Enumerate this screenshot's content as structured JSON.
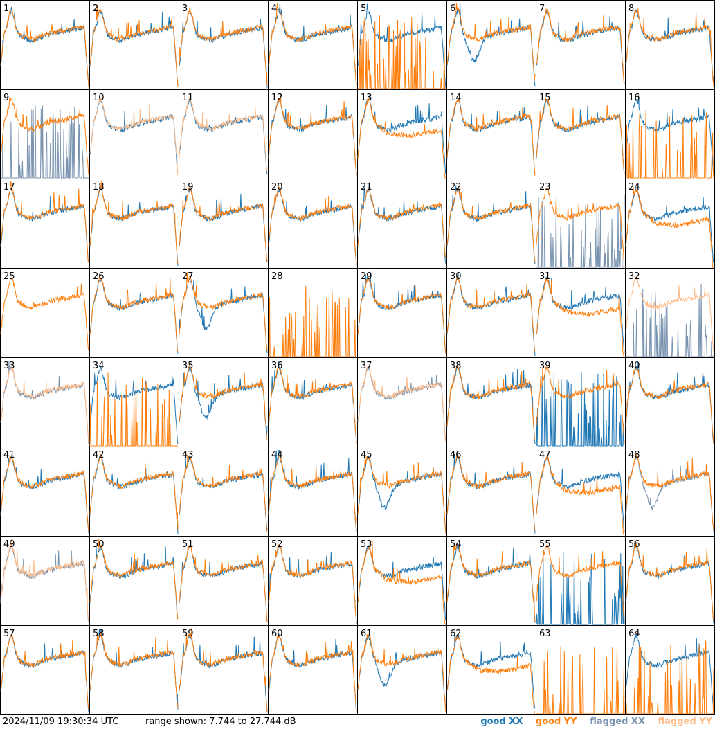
{
  "footer": {
    "timestamp": "2024/11/09 19:30:34 UTC",
    "range_text": "range shown: 7.744 to 27.744 dB"
  },
  "legend": [
    {
      "label": "good XX",
      "color": "#1f77b4"
    },
    {
      "label": "good YY",
      "color": "#ff7f0e"
    },
    {
      "label": "flagged XX",
      "color": "#7a94b0"
    },
    {
      "label": "flagged YY",
      "color": "#ffbb88"
    }
  ],
  "chart_data": {
    "type": "line",
    "layout": "small-multiples 8x8",
    "panels": [
      "1",
      "2",
      "3",
      "4",
      "5",
      "6",
      "7",
      "8",
      "9",
      "10",
      "11",
      "12",
      "13",
      "14",
      "15",
      "16",
      "17",
      "18",
      "19",
      "20",
      "21",
      "22",
      "23",
      "24",
      "25",
      "26",
      "27",
      "28",
      "29",
      "30",
      "31",
      "32",
      "33",
      "34",
      "35",
      "36",
      "37",
      "38",
      "39",
      "40",
      "41",
      "42",
      "43",
      "44",
      "45",
      "46",
      "47",
      "48",
      "49",
      "50",
      "51",
      "52",
      "53",
      "54",
      "55",
      "56",
      "57",
      "58",
      "59",
      "60",
      "61",
      "62",
      "63",
      "64"
    ],
    "ylim": [
      7.744,
      27.744
    ],
    "units": "dB",
    "series_order": [
      "good XX",
      "good YY",
      "flagged XX",
      "flagged YY"
    ],
    "panel_status": {
      "1": [
        "good",
        "good",
        "normal"
      ],
      "5": [
        "good",
        "good",
        "yy_spiky_low"
      ],
      "6": [
        "good",
        "good",
        "xx_dip"
      ],
      "9": [
        "flagged",
        "good",
        "xx_spiky_low"
      ],
      "10": [
        "good",
        "flagged",
        "normal"
      ],
      "11": [
        "good",
        "flagged",
        "normal"
      ],
      "13": [
        "good",
        "good",
        "yy_low"
      ],
      "16": [
        "good",
        "good",
        "yy_spiky_low"
      ],
      "23": [
        "flagged",
        "good",
        "xx_spiky_low"
      ],
      "24": [
        "good",
        "good",
        "yy_low"
      ],
      "25": [
        "none",
        "good",
        "normal"
      ],
      "27": [
        "good",
        "good",
        "xx_dip"
      ],
      "28": [
        "none",
        "good",
        "yy_spiky_low"
      ],
      "31": [
        "good",
        "good",
        "yy_low"
      ],
      "32": [
        "flagged",
        "flagged",
        "xx_spiky_low"
      ],
      "33": [
        "flagged",
        "flagged",
        "normal"
      ],
      "34": [
        "good",
        "good",
        "yy_spiky_low"
      ],
      "35": [
        "good",
        "good",
        "xx_dip"
      ],
      "37": [
        "flagged",
        "flagged",
        "normal"
      ],
      "39": [
        "good",
        "good",
        "xx_spiky_low"
      ],
      "45": [
        "good",
        "good",
        "xx_dip"
      ],
      "47": [
        "good",
        "good",
        "yy_low"
      ],
      "48": [
        "flagged",
        "good",
        "xx_dip"
      ],
      "49": [
        "flagged",
        "flagged",
        "normal"
      ],
      "53": [
        "good",
        "good",
        "yy_low"
      ],
      "55": [
        "good",
        "good",
        "xx_spiky_low"
      ],
      "61": [
        "good",
        "good",
        "xx_dip"
      ],
      "62": [
        "good",
        "good",
        "yy_low"
      ],
      "63": [
        "none",
        "good",
        "yy_spiky_low"
      ],
      "64": [
        "good",
        "good",
        "yy_spiky_low"
      ]
    },
    "default_status": [
      "good",
      "good",
      "normal"
    ]
  }
}
